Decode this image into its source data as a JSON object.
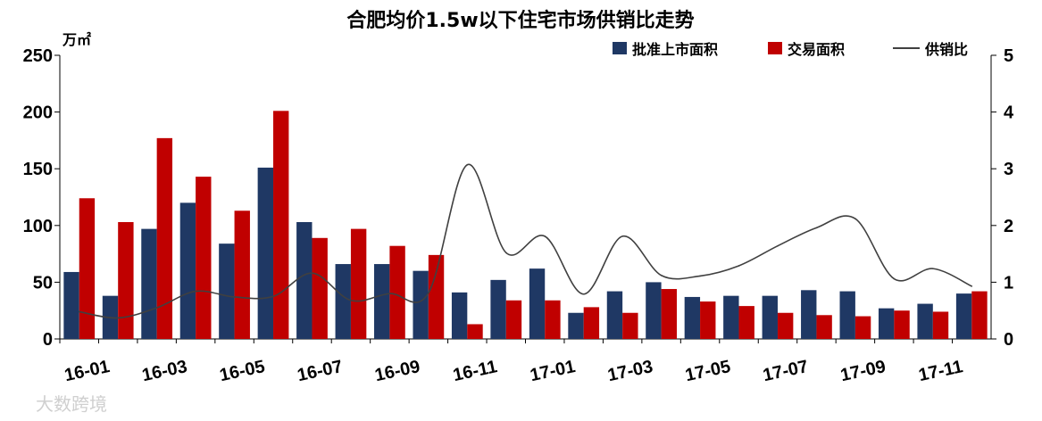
{
  "chart_data": {
    "type": "bar",
    "title": "合肥均价1.5w以下住宅市场供销比走势",
    "y_unit": "万㎡",
    "categories": [
      "16-01",
      "16-02",
      "16-03",
      "16-04",
      "16-05",
      "16-06",
      "16-07",
      "16-08",
      "16-09",
      "16-10",
      "16-11",
      "16-12",
      "17-01",
      "17-02",
      "17-03",
      "17-04",
      "17-05",
      "17-06",
      "17-07",
      "17-08",
      "17-09",
      "17-10",
      "17-11",
      "17-12"
    ],
    "x_tick_labels": [
      "16-01",
      "16-03",
      "16-05",
      "16-07",
      "16-09",
      "16-11",
      "17-01",
      "17-03",
      "17-05",
      "17-07",
      "17-09",
      "17-11"
    ],
    "series": [
      {
        "name": "批准上市面积",
        "type": "bar",
        "axis": "left",
        "color": "#1f3864",
        "values": [
          59,
          38,
          97,
          120,
          84,
          151,
          103,
          66,
          66,
          60,
          41,
          52,
          62,
          23,
          42,
          50,
          37,
          38,
          38,
          43,
          42,
          27,
          31,
          40
        ]
      },
      {
        "name": "交易面积",
        "type": "bar",
        "axis": "left",
        "color": "#c00000",
        "values": [
          124,
          103,
          177,
          143,
          113,
          201,
          89,
          97,
          82,
          74,
          13,
          34,
          34,
          28,
          23,
          44,
          33,
          29,
          23,
          21,
          20,
          25,
          24,
          42
        ]
      },
      {
        "name": "供销比",
        "type": "line",
        "axis": "right",
        "color": "#404040",
        "values": [
          0.48,
          0.37,
          0.55,
          0.84,
          0.74,
          0.75,
          1.16,
          0.68,
          0.8,
          0.81,
          3.07,
          1.52,
          1.81,
          0.79,
          1.81,
          1.12,
          1.11,
          1.29,
          1.64,
          1.96,
          2.12,
          1.06,
          1.24,
          0.93
        ]
      }
    ],
    "y_left": {
      "min": 0,
      "max": 250,
      "ticks": [
        0,
        50,
        100,
        150,
        200,
        250
      ]
    },
    "y_right": {
      "min": 0,
      "max": 5,
      "ticks": [
        0,
        1,
        2,
        3,
        4,
        5
      ]
    },
    "legend_position": "top-right",
    "grid": false
  },
  "watermark": {
    "text": "大数跨境"
  }
}
